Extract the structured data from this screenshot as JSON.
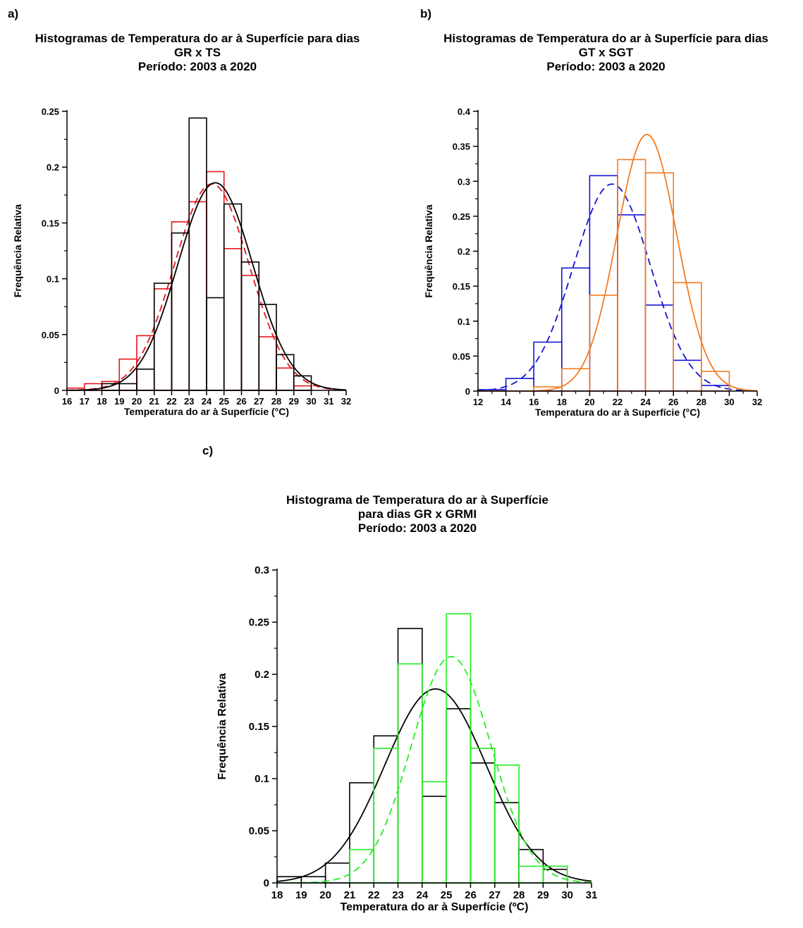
{
  "chart_data": [
    {
      "panel_label": "a)",
      "type": "bar",
      "title_lines": [
        "Histogramas de Temperatura do ar à Superfície para dias",
        "GR x TS",
        "Período: 2003 a 2020"
      ],
      "xlabel": "Temperatura do ar à Superfície (°C)",
      "ylabel": "Frequência Relativa",
      "xlim": [
        16,
        32
      ],
      "ylim": [
        0,
        0.25
      ],
      "xticks": [
        "16",
        "17",
        "18",
        "19",
        "20",
        "21",
        "22",
        "23",
        "24",
        "25",
        "26",
        "27",
        "28",
        "29",
        "30",
        "31",
        "32"
      ],
      "yticks": [
        "0",
        "0.05",
        "0.1",
        "0.15",
        "0.2",
        "0.25"
      ],
      "bin_width": 1,
      "series": [
        {
          "color": "#e8141c",
          "style": "dashed-fit",
          "bin_starts": [
            16,
            17,
            18,
            19,
            20,
            21,
            22,
            23,
            24,
            25,
            26,
            27,
            28,
            29
          ],
          "values": [
            0.002,
            0.006,
            0.008,
            0.028,
            0.049,
            0.091,
            0.151,
            0.169,
            0.196,
            0.127,
            0.103,
            0.048,
            0.02,
            0.004
          ],
          "fit_mean": 24.3,
          "fit_sd": 2.15,
          "fit_peak": 0.185
        },
        {
          "color": "#000000",
          "style": "solid-fit",
          "bin_starts": [
            18,
            19,
            20,
            21,
            22,
            23,
            24,
            25,
            26,
            27,
            28,
            29
          ],
          "values": [
            0.006,
            0.006,
            0.019,
            0.096,
            0.141,
            0.244,
            0.083,
            0.167,
            0.115,
            0.077,
            0.032,
            0.013
          ],
          "fit_mean": 24.5,
          "fit_sd": 2.15,
          "fit_peak": 0.186
        }
      ]
    },
    {
      "panel_label": "b)",
      "type": "bar",
      "title_lines": [
        "Histogramas de Temperatura do ar à Superfície para dias",
        "GT x SGT",
        "Período: 2003 a 2020"
      ],
      "xlabel": "Temperatura do ar à Superfície (°C)",
      "ylabel": "Frequência Relativa",
      "xlim": [
        12,
        32
      ],
      "ylim": [
        0,
        0.4
      ],
      "xticks": [
        "12",
        "14",
        "16",
        "18",
        "20",
        "22",
        "24",
        "26",
        "28",
        "30",
        "32"
      ],
      "yticks": [
        "0",
        "0.05",
        "0.1",
        "0.15",
        "0.2",
        "0.25",
        "0.3",
        "0.35",
        "0.4"
      ],
      "bin_width": 2,
      "series": [
        {
          "color": "#1414d2",
          "style": "dashed-fit",
          "bin_starts": [
            12,
            14,
            16,
            18,
            20,
            22,
            24,
            26,
            28
          ],
          "values": [
            0.002,
            0.018,
            0.07,
            0.176,
            0.308,
            0.252,
            0.123,
            0.044,
            0.008
          ],
          "fit_mean": 21.6,
          "fit_sd": 2.75,
          "fit_peak": 0.296
        },
        {
          "color": "#f57a1e",
          "style": "solid-fit",
          "bin_starts": [
            16,
            18,
            20,
            22,
            24,
            26,
            28
          ],
          "values": [
            0.006,
            0.032,
            0.137,
            0.331,
            0.312,
            0.155,
            0.028
          ],
          "fit_mean": 24.1,
          "fit_sd": 2.15,
          "fit_peak": 0.367
        }
      ]
    },
    {
      "panel_label": "c)",
      "type": "bar",
      "title_lines": [
        "Histograma de Temperatura do ar à Superfície",
        "para dias GR x GRMI",
        "Período: 2003 a 2020"
      ],
      "xlabel": "Temperatura do ar à Superfície (ºC)",
      "ylabel": "Frequência Relativa",
      "xlim": [
        18,
        31
      ],
      "ylim": [
        0,
        0.3
      ],
      "xticks": [
        "18",
        "19",
        "20",
        "21",
        "22",
        "23",
        "24",
        "25",
        "26",
        "27",
        "28",
        "29",
        "30",
        "31"
      ],
      "yticks": [
        "0",
        "0.05",
        "0.1",
        "0.15",
        "0.2",
        "0.25",
        "0.3"
      ],
      "bin_width": 1,
      "series": [
        {
          "color": "#000000",
          "style": "solid-fit",
          "bin_starts": [
            18,
            19,
            20,
            21,
            22,
            23,
            24,
            25,
            26,
            27,
            28,
            29
          ],
          "values": [
            0.006,
            0.006,
            0.019,
            0.096,
            0.141,
            0.244,
            0.083,
            0.167,
            0.115,
            0.077,
            0.032,
            0.013
          ],
          "fit_mean": 24.55,
          "fit_sd": 2.1,
          "fit_peak": 0.186
        },
        {
          "color": "#22ee22",
          "style": "dashed-fit",
          "bin_starts": [
            21,
            22,
            23,
            24,
            25,
            26,
            27,
            28,
            29
          ],
          "values": [
            0.032,
            0.129,
            0.21,
            0.097,
            0.258,
            0.129,
            0.113,
            0.016,
            0.016
          ],
          "fit_mean": 25.2,
          "fit_sd": 1.65,
          "fit_peak": 0.217
        }
      ]
    }
  ]
}
